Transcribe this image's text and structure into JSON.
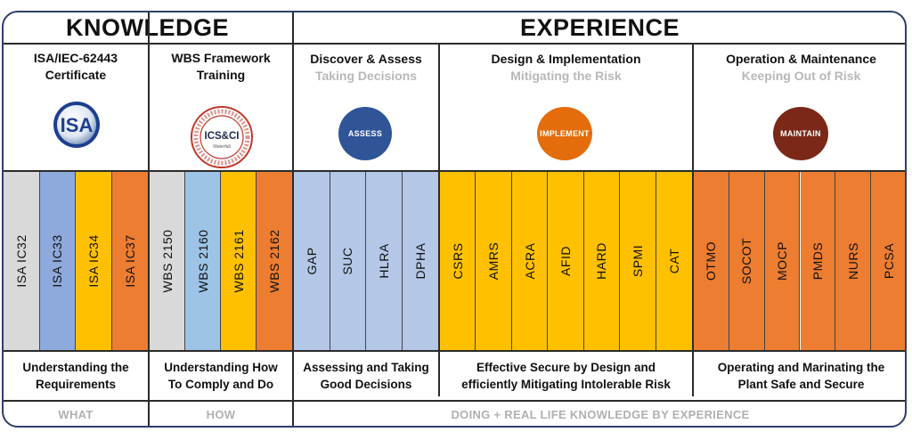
{
  "knowledge_title": "KNOWLEDGE",
  "experience_title": "EXPERIENCE",
  "columns": [
    {
      "title": "ISA/IEC-62443\nCertificate",
      "subtitle": "",
      "logo": "isa-logo",
      "description": "Understanding the\nRequirements",
      "footer": "WHAT",
      "bars": [
        {
          "label": "ISA IC32",
          "color": "#d9d9d9"
        },
        {
          "label": "ISA IC33",
          "color": "#8ea9db"
        },
        {
          "label": "ISA IC34",
          "color": "#ffc000"
        },
        {
          "label": "ISA IC37",
          "color": "#ed7d31"
        }
      ]
    },
    {
      "title": "WBS Framework\nTraining",
      "subtitle": "",
      "logo": "icsci-logo",
      "description": "Understanding How\nTo Comply and Do",
      "footer": "HOW",
      "bars": [
        {
          "label": "WBS 2150",
          "color": "#d9d9d9"
        },
        {
          "label": "WBS 2160",
          "color": "#9dc3e6"
        },
        {
          "label": "WBS 2161",
          "color": "#ffc000"
        },
        {
          "label": "WBS 2162",
          "color": "#ed7d31"
        }
      ]
    },
    {
      "title": "Discover & Assess",
      "subtitle": "Taking Decisions",
      "badge": "ASSESS",
      "badge_color": "#2f5597",
      "description": "Assessing and Taking\nGood Decisions",
      "bars": [
        {
          "label": "GAP",
          "color": "#b4c7e7"
        },
        {
          "label": "SUC",
          "color": "#b4c7e7"
        },
        {
          "label": "HLRA",
          "color": "#b4c7e7"
        },
        {
          "label": "DPHA",
          "color": "#b4c7e7"
        }
      ]
    },
    {
      "title": "Design & Implementation",
      "subtitle": "Mitigating the Risk",
      "badge": "IMPLEMENT",
      "badge_color": "#e46c0a",
      "description": "Effective Secure by Design and\nefficiently Mitigating Intolerable Risk",
      "bars": [
        {
          "label": "CSRS",
          "color": "#ffc000"
        },
        {
          "label": "AMRS",
          "color": "#ffc000"
        },
        {
          "label": "ACRA",
          "color": "#ffc000"
        },
        {
          "label": "AFID",
          "color": "#ffc000"
        },
        {
          "label": "HARD",
          "color": "#ffc000"
        },
        {
          "label": "SPMI",
          "color": "#ffc000"
        },
        {
          "label": "CAT",
          "color": "#ffc000"
        }
      ]
    },
    {
      "title": "Operation & Maintenance",
      "subtitle": "Keeping Out of Risk",
      "badge": "MAINTAIN",
      "badge_color": "#7b2818",
      "description": "Operating and Marinating the\nPlant Safe and Secure",
      "bars": [
        {
          "label": "OTMO",
          "color": "#ed7d31"
        },
        {
          "label": "SOCOT",
          "color": "#ed7d31"
        },
        {
          "label": "MOCP",
          "color": "#ed7d31"
        },
        {
          "label": "PMDS",
          "color": "#ed7d31"
        },
        {
          "label": "NURS",
          "color": "#ed7d31"
        },
        {
          "label": "PCSA",
          "color": "#ed7d31"
        }
      ]
    }
  ],
  "experience_footer": "DOING + REAL LIFE KNOWLEDGE BY EXPERIENCE",
  "logos": {
    "isa_text": "ISA",
    "icsci_text": "ICS&CI",
    "icsci_ring": "INDUSTRIAL CYBERSECURITY & CRITICAL INFRASTRUCTURE",
    "icsci_brand": "Waterfall"
  }
}
